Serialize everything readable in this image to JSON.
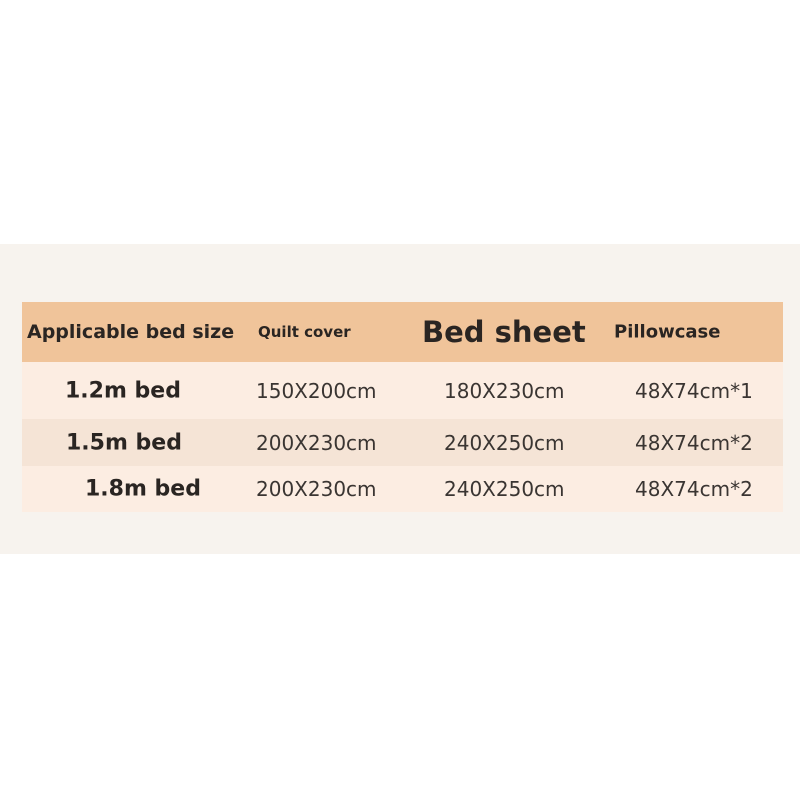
{
  "table": {
    "headers": [
      "Applicable bed size",
      "Quilt cover",
      "Bed sheet",
      "Pillowcase"
    ],
    "rows": [
      {
        "size": "1.2m bed",
        "quilt": "150X200cm",
        "sheet": "180X230cm",
        "pillow": "48X74cm*1"
      },
      {
        "size": "1.5m bed",
        "quilt": "200X230cm",
        "sheet": "240X250cm",
        "pillow": "48X74cm*2"
      },
      {
        "size": "1.8m bed",
        "quilt": "200X230cm",
        "sheet": "240X250cm",
        "pillow": "48X74cm*2"
      }
    ]
  },
  "colors": {
    "header": "#f0c49a",
    "row_light": "#fcede2",
    "row_dark": "#f5e4d6",
    "background": "#f7f3ee"
  }
}
